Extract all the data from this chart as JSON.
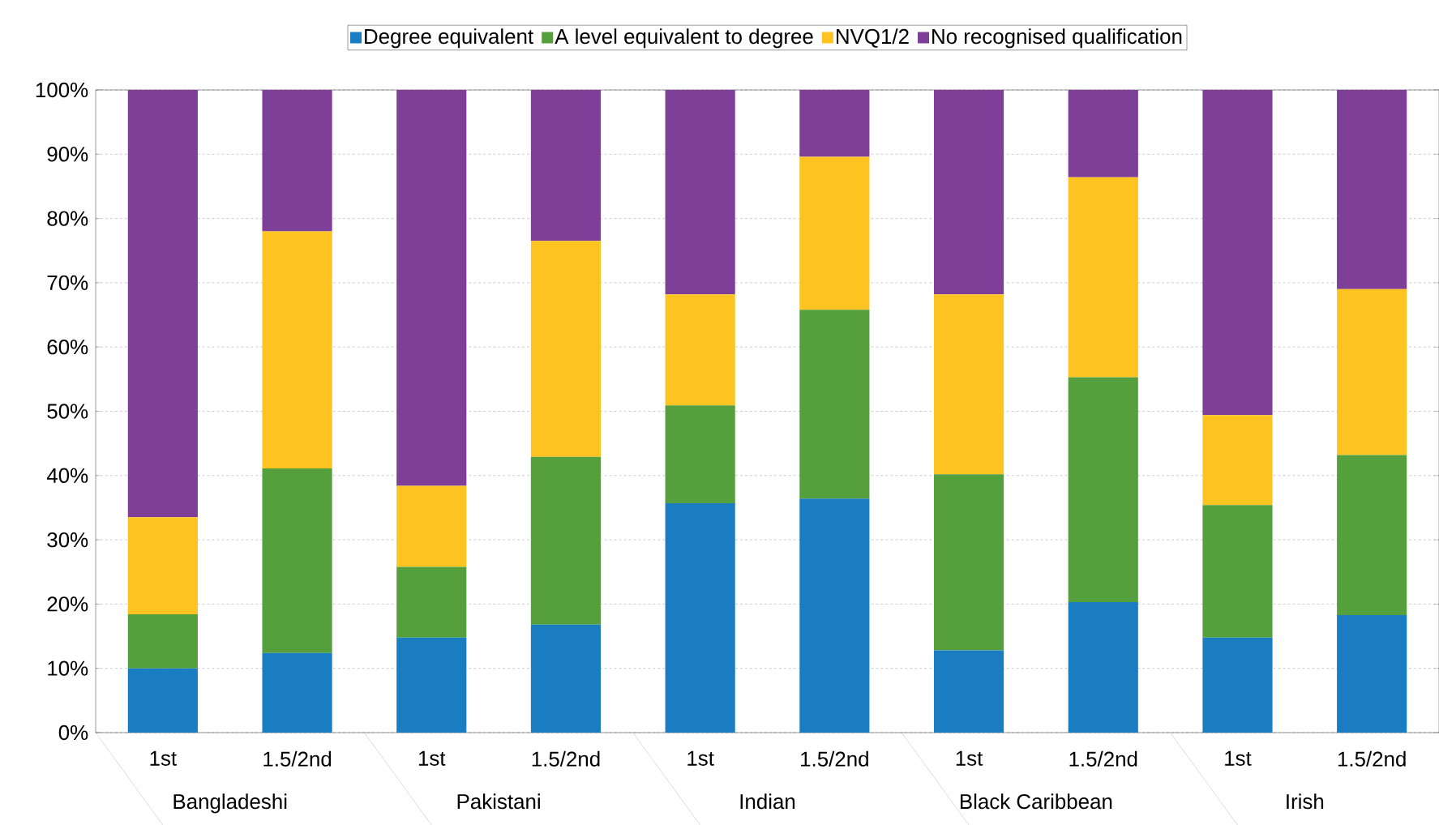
{
  "chart_data": {
    "type": "bar",
    "stacked": true,
    "categories": [
      "1st",
      "1.5/2nd",
      "1st",
      "1.5/2nd",
      "1st",
      "1.5/2nd",
      "1st",
      "1.5/2nd",
      "1st",
      "1.5/2nd"
    ],
    "annotations": [
      "Bangladeshi",
      "Pakistani",
      "Indian",
      "Black Caribbean",
      "Irish"
    ],
    "series": [
      {
        "name": "Degree equivalent",
        "color": "#1a7cc1",
        "values": [
          10,
          12.4,
          14.8,
          16.8,
          35.7,
          36.4,
          12.8,
          20.3,
          14.8,
          18.3
        ]
      },
      {
        "name": "A level equivalent to degree",
        "color": "#55a03c",
        "values": [
          8.4,
          28.7,
          11.0,
          26.1,
          15.2,
          29.4,
          27.4,
          35.0,
          20.6,
          24.9
        ]
      },
      {
        "name": "NVQ1/2",
        "color": "#fdc320",
        "values": [
          15.1,
          36.9,
          12.6,
          33.6,
          17.3,
          23.8,
          28.0,
          31.1,
          14.0,
          25.8
        ]
      },
      {
        "name": "No recognised qualification",
        "color": "#7e3f98",
        "values": [
          66.5,
          22.0,
          61.6,
          23.5,
          31.8,
          10.4,
          31.8,
          13.6,
          50.6,
          31.0
        ]
      }
    ],
    "ylim": [
      0,
      100
    ],
    "yticks": [
      {
        "value": 0,
        "label": "0%"
      },
      {
        "value": 10,
        "label": "10%"
      },
      {
        "value": 20,
        "label": "20%"
      },
      {
        "value": 30,
        "label": "30%"
      },
      {
        "value": 40,
        "label": "40%"
      },
      {
        "value": 50,
        "label": "50%"
      },
      {
        "value": 60,
        "label": "60%"
      },
      {
        "value": 70,
        "label": "70%"
      },
      {
        "value": 80,
        "label": "80%"
      },
      {
        "value": 90,
        "label": "90%"
      },
      {
        "value": 100,
        "label": "100%"
      }
    ],
    "grid": "y",
    "legend": "top"
  }
}
